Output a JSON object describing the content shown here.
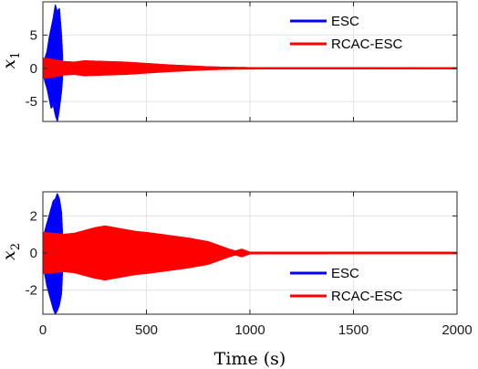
{
  "chart_data": [
    {
      "type": "line",
      "ylabel": "x",
      "ylabel_subscript": "1",
      "xlim": [
        0,
        2000
      ],
      "ylim": [
        -8,
        10
      ],
      "yticks": [
        -5,
        0,
        5
      ],
      "xticks": [
        0,
        500,
        1000,
        1500,
        2000
      ],
      "grid": true,
      "legend_placement": "top-right",
      "series": [
        {
          "name": "ESC",
          "color": "#0000ff",
          "envelope": {
            "x": [
              0,
              10,
              20,
              30,
              40,
              50,
              60,
              70,
              80,
              90,
              95
            ],
            "upper": [
              0.5,
              1.5,
              2.5,
              4.5,
              6.0,
              7.5,
              9.5,
              8.5,
              9.0,
              5.0,
              2.0
            ],
            "lower": [
              -0.5,
              -2.0,
              -3.0,
              -4.5,
              -6.0,
              -5.5,
              -7.0,
              -8.0,
              -6.0,
              -3.5,
              -1.5
            ]
          }
        },
        {
          "name": "RCAC-ESC",
          "color": "#ff0000",
          "envelope": {
            "x": [
              0,
              50,
              100,
              150,
              200,
              300,
              400,
              500,
              600,
              700,
              800,
              900,
              1000,
              2000
            ],
            "upper": [
              1.5,
              1.3,
              1.0,
              0.9,
              1.1,
              1.0,
              0.9,
              0.7,
              0.5,
              0.35,
              0.2,
              0.12,
              0.08,
              0.05
            ],
            "lower": [
              -1.5,
              -1.3,
              -1.0,
              -0.9,
              -1.1,
              -1.0,
              -0.9,
              -0.7,
              -0.5,
              -0.35,
              -0.2,
              -0.12,
              -0.08,
              -0.05
            ]
          }
        }
      ]
    },
    {
      "type": "line",
      "ylabel": "x",
      "ylabel_subscript": "2",
      "xlabel": "Time (s)",
      "xlim": [
        0,
        2000
      ],
      "ylim": [
        -3.3,
        3.3
      ],
      "yticks": [
        -2,
        0,
        2
      ],
      "xticks": [
        0,
        500,
        1000,
        1500,
        2000
      ],
      "grid": true,
      "legend_placement": "bottom-right",
      "series": [
        {
          "name": "ESC",
          "color": "#0000ff",
          "envelope": {
            "x": [
              0,
              10,
              20,
              30,
              40,
              50,
              60,
              70,
              80,
              90,
              95
            ],
            "upper": [
              0.6,
              1.2,
              1.6,
              2.0,
              2.4,
              2.8,
              2.9,
              3.2,
              2.9,
              2.2,
              1.0
            ],
            "lower": [
              -0.6,
              -1.2,
              -1.8,
              -2.2,
              -2.6,
              -3.0,
              -3.3,
              -3.1,
              -2.8,
              -2.2,
              -1.0
            ]
          }
        },
        {
          "name": "RCAC-ESC",
          "color": "#ff0000",
          "envelope": {
            "x": [
              0,
              50,
              100,
              150,
              200,
              250,
              300,
              350,
              400,
              450,
              500,
              600,
              700,
              800,
              850,
              900,
              930,
              960,
              1000,
              2000
            ],
            "upper": [
              1.1,
              1.05,
              1.0,
              1.05,
              1.2,
              1.35,
              1.45,
              1.35,
              1.25,
              1.15,
              1.1,
              0.95,
              0.8,
              0.6,
              0.4,
              0.2,
              0.1,
              0.2,
              0.04,
              0.03
            ],
            "lower": [
              -1.1,
              -1.05,
              -1.0,
              -1.05,
              -1.2,
              -1.35,
              -1.45,
              -1.35,
              -1.25,
              -1.15,
              -1.1,
              -0.95,
              -0.8,
              -0.6,
              -0.4,
              -0.2,
              -0.1,
              -0.2,
              -0.04,
              -0.03
            ]
          }
        }
      ]
    }
  ]
}
